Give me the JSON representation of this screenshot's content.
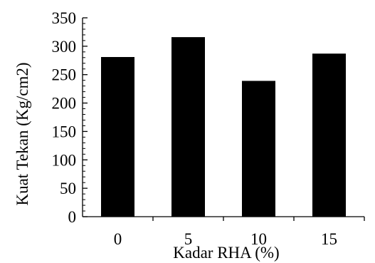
{
  "chart_data": {
    "type": "bar",
    "title": "",
    "xlabel": "Kadar RHA (%)",
    "ylabel": "Kuat Tekan (Kg/cm2)",
    "categories": [
      "0",
      "5",
      "10",
      "15"
    ],
    "values": [
      281,
      316,
      239,
      287
    ],
    "ylim": [
      0,
      350
    ],
    "yticks": [
      0,
      50,
      100,
      150,
      200,
      250,
      300,
      350
    ],
    "minor_ticks_per_major": 5,
    "grid": false,
    "legend": "none",
    "colors": {
      "bar": "#000000",
      "axis": "#000000",
      "background": "#ffffff"
    }
  }
}
